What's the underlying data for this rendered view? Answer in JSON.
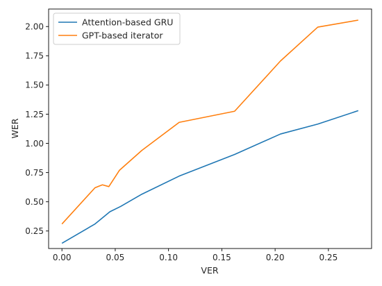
{
  "chart_data": {
    "type": "line",
    "title": "",
    "xlabel": "VER",
    "ylabel": "WER",
    "xlim": [
      -0.0125,
      0.2905
    ],
    "ylim": [
      0.1,
      2.15
    ],
    "xticks": [
      0.0,
      0.05,
      0.1,
      0.15,
      0.2,
      0.25
    ],
    "xtick_labels": [
      "0.00",
      "0.05",
      "0.10",
      "0.15",
      "0.20",
      "0.25"
    ],
    "yticks": [
      0.25,
      0.5,
      0.75,
      1.0,
      1.25,
      1.5,
      1.75,
      2.0
    ],
    "ytick_labels": [
      "0.25",
      "0.50",
      "0.75",
      "1.00",
      "1.25",
      "1.50",
      "1.75",
      "2.00"
    ],
    "grid": false,
    "legend_position": "upper-left",
    "series": [
      {
        "name": "Attention-based GRU",
        "color": "#1f77b4",
        "x": [
          0.0,
          0.031,
          0.035,
          0.045,
          0.055,
          0.075,
          0.11,
          0.162,
          0.205,
          0.24,
          0.278
        ],
        "y": [
          0.145,
          0.31,
          0.34,
          0.415,
          0.46,
          0.565,
          0.72,
          0.905,
          1.08,
          1.165,
          1.28
        ]
      },
      {
        "name": "GPT-based iterator",
        "color": "#ff7f0e",
        "x": [
          0.0,
          0.031,
          0.035,
          0.038,
          0.044,
          0.054,
          0.075,
          0.11,
          0.162,
          0.205,
          0.24,
          0.278
        ],
        "y": [
          0.31,
          0.62,
          0.635,
          0.645,
          0.63,
          0.77,
          0.94,
          1.18,
          1.275,
          1.705,
          1.995,
          2.055
        ]
      }
    ]
  }
}
